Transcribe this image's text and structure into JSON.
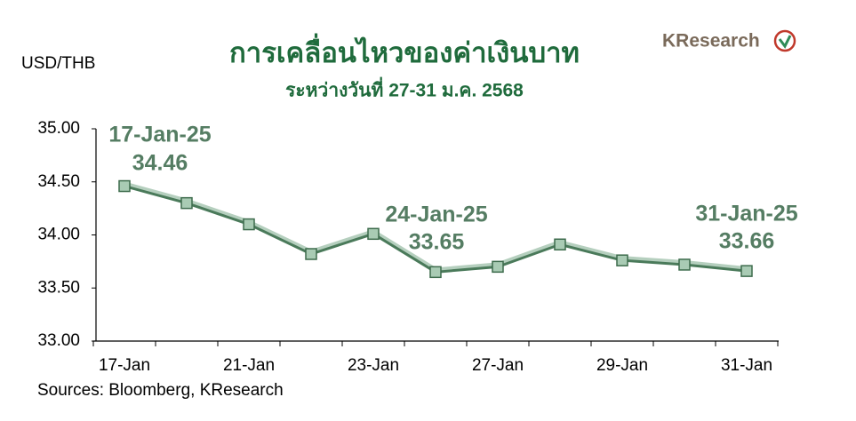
{
  "chart_data": {
    "type": "line",
    "title": "การเคลื่อนไหวของค่าเงินบาท",
    "subtitle": "ระหว่างวันที่ 27-31 ม.ค. 2568",
    "y_label": "USD/THB",
    "source": "Sources: Bloomberg, KResearch",
    "logo": "KResearch",
    "categories": [
      "17-Jan",
      null,
      "21-Jan",
      null,
      "23-Jan",
      null,
      "27-Jan",
      null,
      "29-Jan",
      null,
      "31-Jan"
    ],
    "series": [
      {
        "name": "USD/THB",
        "color": "#4a7a5a",
        "values": [
          34.46,
          34.3,
          34.1,
          33.82,
          34.01,
          33.65,
          33.7,
          33.91,
          33.76,
          33.72,
          33.66
        ]
      }
    ],
    "ylim": [
      33,
      35
    ],
    "yticks": [
      {
        "value": 33,
        "label": "33.00"
      },
      {
        "value": 33.5,
        "label": "33.50"
      },
      {
        "value": 34,
        "label": "34.00"
      },
      {
        "value": 34.5,
        "label": "34.50"
      },
      {
        "value": 35,
        "label": "35.00"
      }
    ],
    "annotations": [
      {
        "date": "17-Jan-25",
        "value": 34.46
      },
      {
        "date": "24-Jan-25",
        "value": 33.65
      },
      {
        "date": "31-Jan-25",
        "value": 33.66
      }
    ],
    "grid": false
  }
}
